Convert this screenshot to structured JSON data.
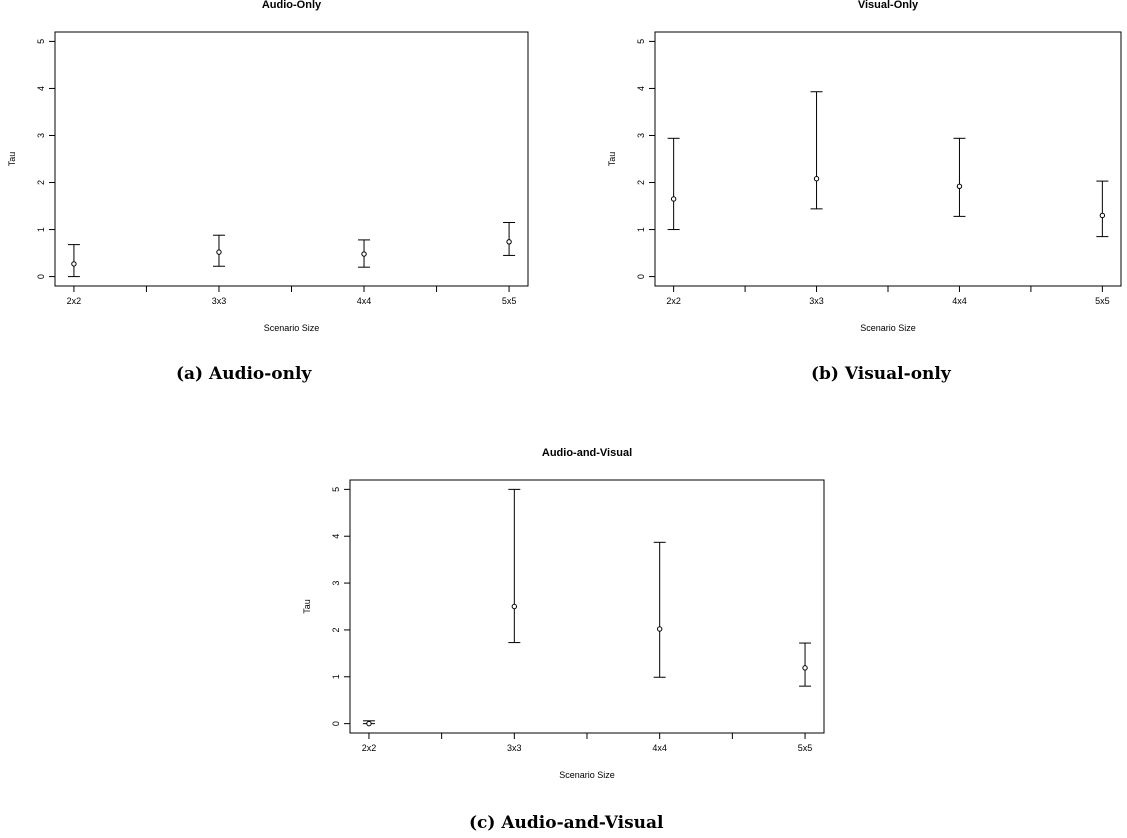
{
  "chart_data": [
    {
      "type": "scatter",
      "title": "Audio-Only",
      "xlabel": "Scenario Size",
      "ylabel": "Tau",
      "categories": [
        "2x2",
        "3x3",
        "4x4",
        "5x5"
      ],
      "values": [
        0.27,
        0.52,
        0.48,
        0.74
      ],
      "lower": [
        0.0,
        0.22,
        0.2,
        0.45
      ],
      "upper": [
        0.68,
        0.88,
        0.78,
        1.15
      ],
      "yticks": [
        "0",
        "1",
        "2",
        "3",
        "4",
        "5"
      ],
      "ylim": [
        -0.2,
        5.2
      ],
      "grid": false,
      "caption": "(a) Audio-only"
    },
    {
      "type": "scatter",
      "title": "Visual-Only",
      "xlabel": "Scenario Size",
      "ylabel": "Tau",
      "categories": [
        "2x2",
        "3x3",
        "4x4",
        "5x5"
      ],
      "values": [
        1.65,
        2.08,
        1.92,
        1.3
      ],
      "lower": [
        1.0,
        1.44,
        1.28,
        0.85
      ],
      "upper": [
        2.94,
        3.93,
        2.94,
        2.03
      ],
      "yticks": [
        "0",
        "1",
        "2",
        "3",
        "4",
        "5"
      ],
      "ylim": [
        -0.2,
        5.2
      ],
      "grid": false,
      "caption": "(b) Visual-only"
    },
    {
      "type": "scatter",
      "title": "Audio-and-Visual",
      "xlabel": "Scenario Size",
      "ylabel": "Tau",
      "categories": [
        "2x2",
        "3x3",
        "4x4",
        "5x5"
      ],
      "values": [
        0.0,
        2.5,
        2.02,
        1.19
      ],
      "lower": [
        0.0,
        1.73,
        0.99,
        0.8
      ],
      "upper": [
        0.06,
        5.0,
        3.87,
        1.72
      ],
      "yticks": [
        "0",
        "1",
        "2",
        "3",
        "4",
        "5"
      ],
      "ylim": [
        -0.2,
        5.2
      ],
      "grid": false,
      "caption": "(c) Audio-and-Visual"
    }
  ]
}
